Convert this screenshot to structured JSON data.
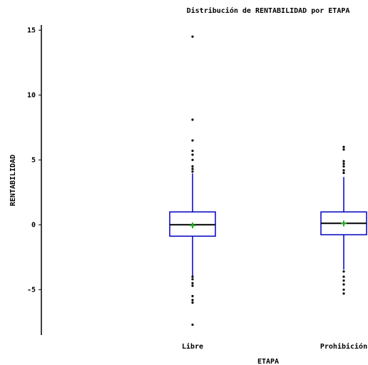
{
  "chart_data": {
    "type": "box",
    "title": "Distribución de RENTABILIDAD por ETAPA",
    "x_label": "ETAPA",
    "y_label": "RENTABILIDAD",
    "categories": [
      "Libre",
      "Prohibición"
    ],
    "ylim": [
      -8.5,
      15.4
    ],
    "yticks": [
      15,
      10,
      5,
      0,
      -5
    ],
    "box_color": "#0000c0",
    "median_color": "#000000",
    "mean_color": "#22aa22",
    "boxes": [
      {
        "whisker_low": -3.96,
        "q1": -0.88,
        "median": 0,
        "q3": 0.99,
        "whisker_high": 3.96,
        "mean": -0.05,
        "outliers": [
          14.5,
          8.1,
          6.5,
          5.7,
          5.4,
          5.0,
          4.5,
          4.3,
          4.1,
          -4.0,
          -4.2,
          -4.5,
          -4.7,
          -5.5,
          -5.8,
          -6.0,
          -7.7
        ]
      },
      {
        "whisker_low": -3.46,
        "q1": -0.77,
        "median": 0.11,
        "q3": 0.99,
        "whisker_high": 3.68,
        "mean": 0.1,
        "outliers": [
          6.0,
          5.8,
          4.9,
          4.7,
          4.5,
          4.2,
          4.0,
          -3.6,
          -4.0,
          -4.3,
          -4.6,
          -5.0,
          -5.3
        ]
      }
    ]
  }
}
